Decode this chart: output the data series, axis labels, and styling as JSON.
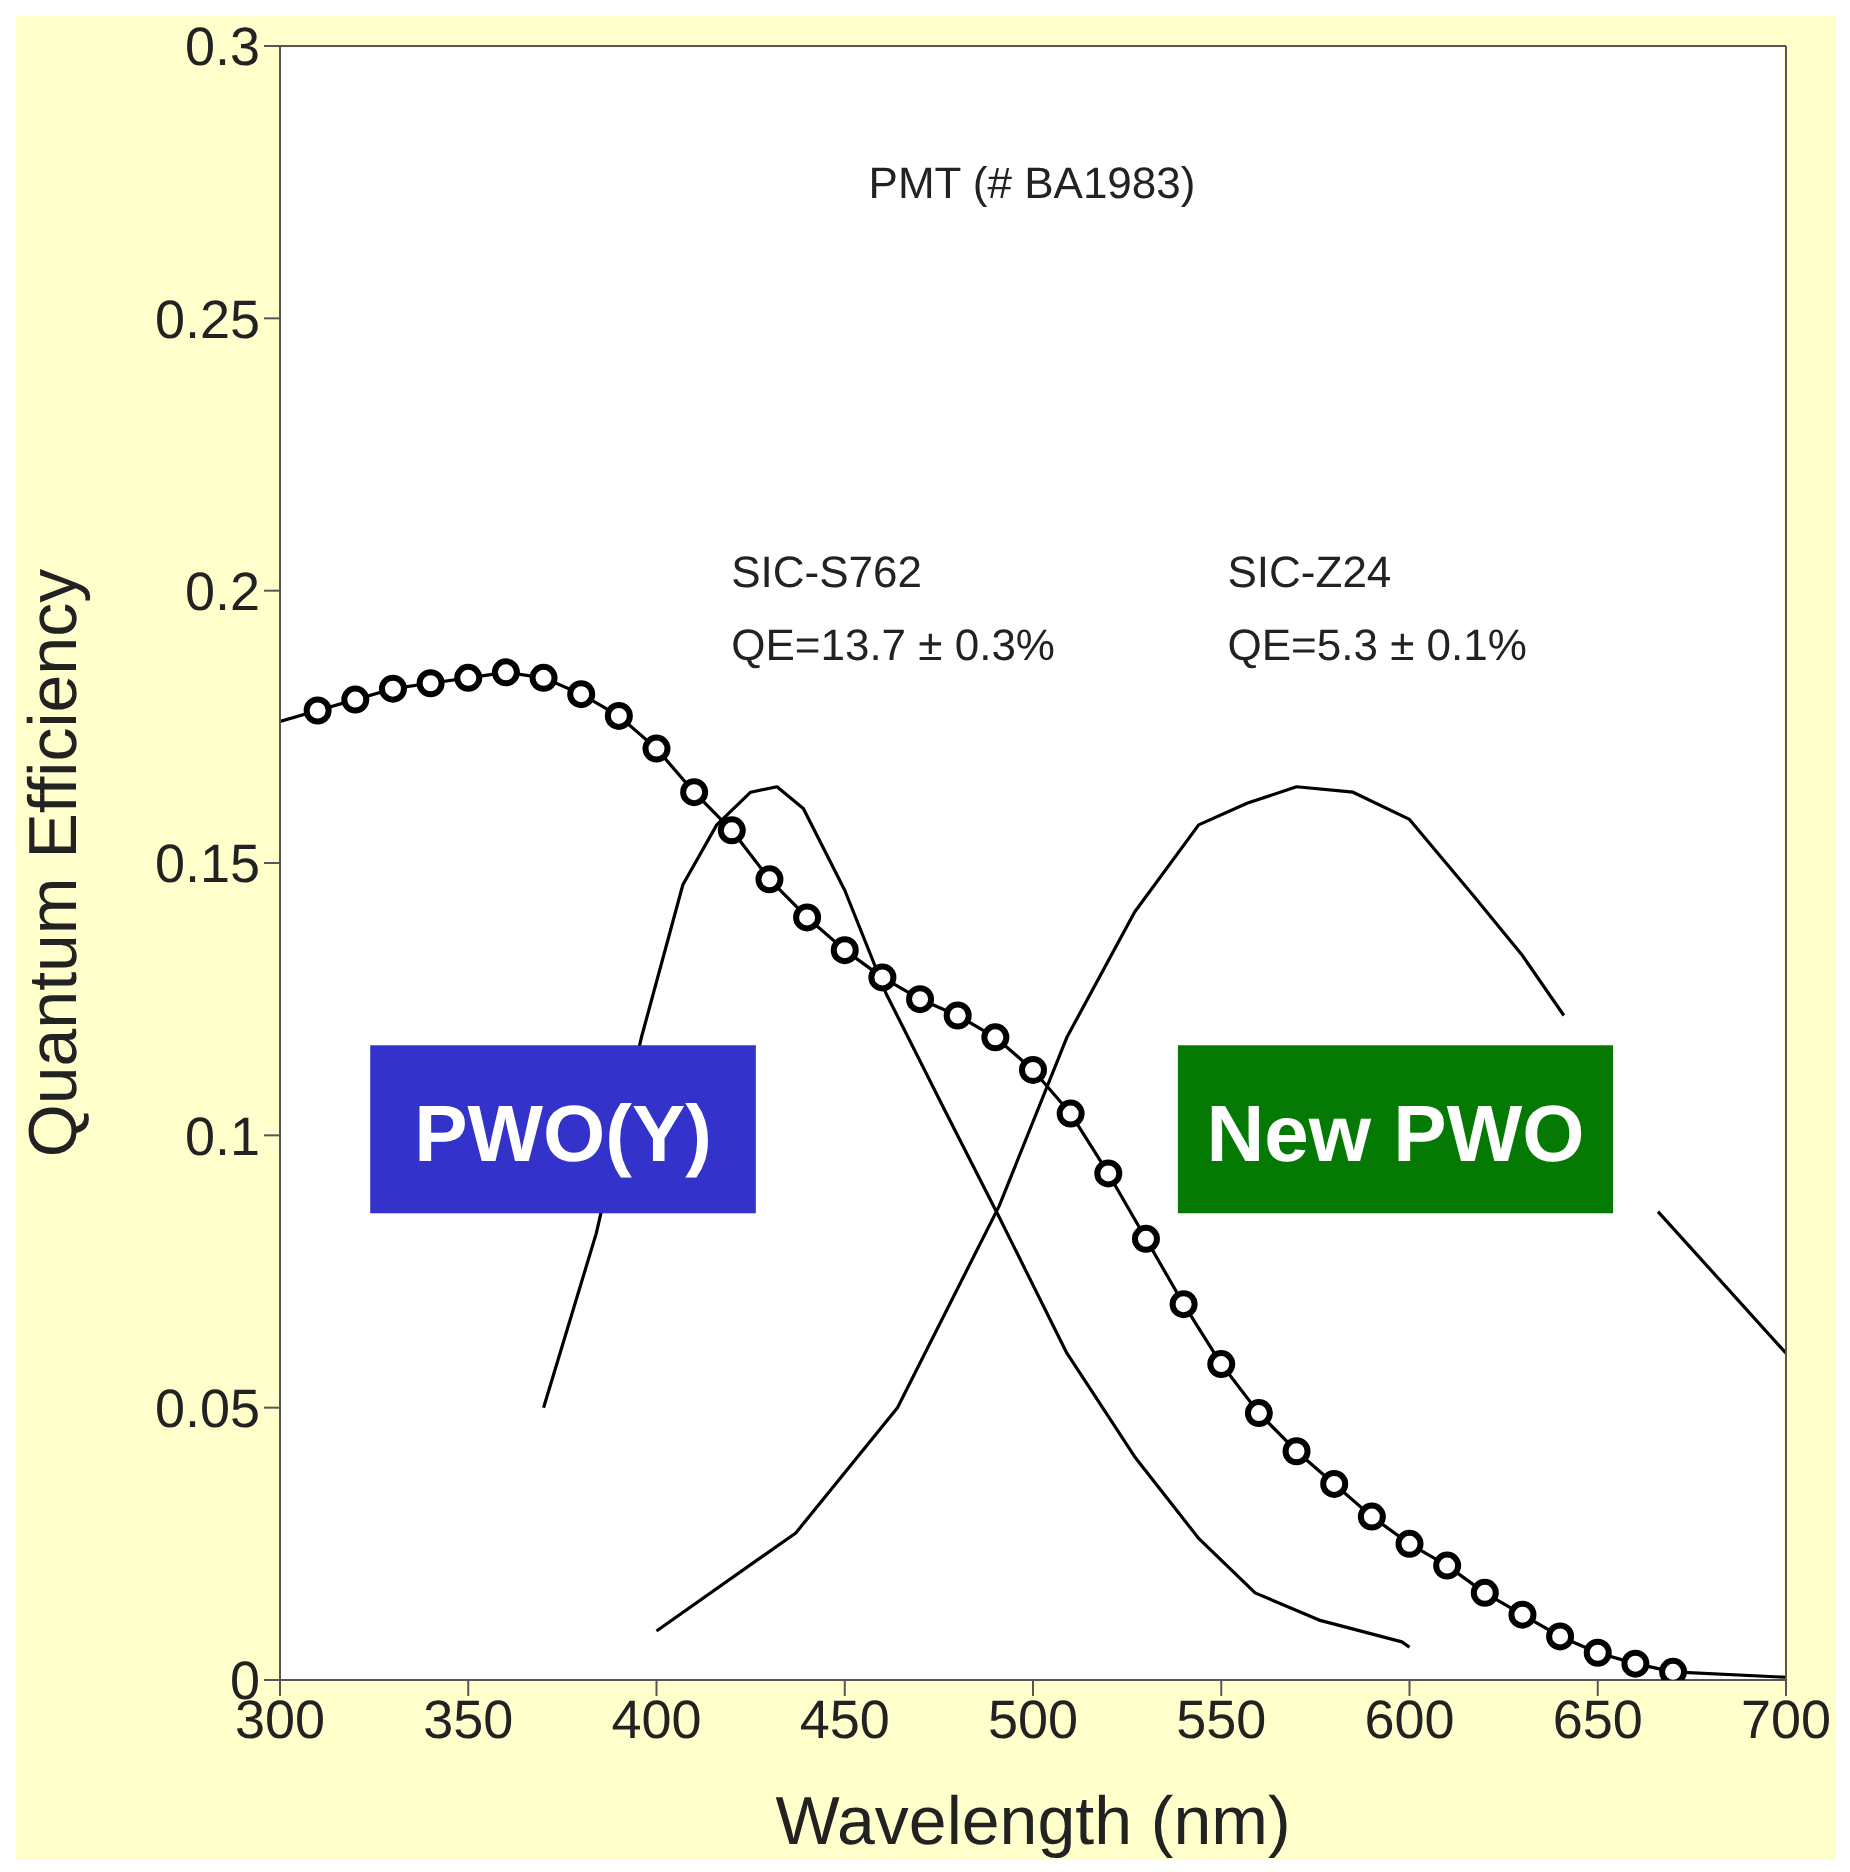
{
  "chart_data": {
    "type": "line",
    "title": "PMT (# BA1983)",
    "xlabel": "Wavelength (nm)",
    "ylabel": "Quantum Efficiency",
    "xlim": [
      300,
      700
    ],
    "xticks": [
      300,
      350,
      400,
      450,
      500,
      550,
      600,
      650,
      700
    ],
    "ylim": [
      0,
      0.3
    ],
    "yticks": [
      0,
      0.05,
      0.1,
      0.15,
      0.2,
      0.25,
      0.3
    ],
    "grid": false,
    "series": [
      {
        "color": "#000000",
        "marker": "none",
        "x": [
          300,
          310,
          320,
          330,
          340,
          350,
          360,
          370,
          380,
          390,
          400,
          410,
          420,
          430,
          440,
          450,
          460,
          470,
          480,
          490,
          500,
          510,
          520,
          530,
          540,
          550,
          560,
          570,
          580,
          590,
          600,
          610,
          620,
          630,
          640,
          650,
          660,
          670,
          700
        ],
        "values": [
          0.176,
          0.178,
          0.18,
          0.182,
          0.183,
          0.184,
          0.185,
          0.184,
          0.181,
          0.177,
          0.171,
          0.163,
          0.156,
          0.147,
          0.14,
          0.134,
          0.129,
          0.125,
          0.122,
          0.118,
          0.112,
          0.104,
          0.093,
          0.081,
          0.069,
          0.058,
          0.049,
          0.042,
          0.036,
          0.03,
          0.025,
          0.021,
          0.016,
          0.012,
          0.008,
          0.005,
          0.003,
          0.0015,
          0.0005
        ]
      },
      {
        "type": "scatter",
        "color": "#000000",
        "marker": "circle",
        "x": [
          310,
          320,
          330,
          340,
          350,
          360,
          370,
          380,
          390,
          400,
          410,
          420,
          430,
          440,
          450,
          460,
          470,
          480,
          490,
          500,
          510,
          520,
          530,
          540,
          550,
          560,
          570,
          580,
          590,
          600,
          610,
          620,
          630,
          640,
          650,
          660,
          670
        ],
        "values": [
          0.178,
          0.18,
          0.182,
          0.183,
          0.184,
          0.185,
          0.184,
          0.181,
          0.177,
          0.171,
          0.163,
          0.156,
          0.147,
          0.14,
          0.134,
          0.129,
          0.125,
          0.122,
          0.118,
          0.112,
          0.104,
          0.093,
          0.081,
          0.069,
          0.058,
          0.049,
          0.042,
          0.036,
          0.03,
          0.025,
          0.021,
          0.016,
          0.012,
          0.008,
          0.005,
          0.003,
          0.0015
        ]
      },
      {
        "color": "#000000",
        "marker": "none",
        "x": [
          370,
          384,
          396,
          407,
          416,
          425,
          432,
          439,
          450,
          461,
          477,
          491,
          509,
          527,
          544,
          559,
          576,
          598,
          600
        ],
        "values": [
          0.05,
          0.082,
          0.118,
          0.146,
          0.157,
          0.163,
          0.164,
          0.16,
          0.145,
          0.126,
          0.104,
          0.085,
          0.06,
          0.041,
          0.026,
          0.016,
          0.011,
          0.007,
          0.006
        ]
      },
      {
        "color": "#000000",
        "marker": "none",
        "x": [
          400,
          437,
          464,
          491,
          509,
          527,
          544,
          557,
          570,
          585,
          600,
          617,
          630,
          641,
          655,
          666,
          700
        ],
        "values": [
          0.009,
          0.027,
          0.05,
          0.087,
          0.118,
          0.141,
          0.157,
          0.161,
          0.164,
          0.163,
          0.158,
          0.144,
          0.133,
          0.122,
          null,
          0.086,
          0.06
        ]
      }
    ],
    "annotations": [
      "SIC-S762",
      "QE=13.7 ± 0.3%",
      "SIC-Z24",
      "QE=5.3 ± 0.1%",
      "PWO(Y)",
      "New PWO"
    ]
  }
}
